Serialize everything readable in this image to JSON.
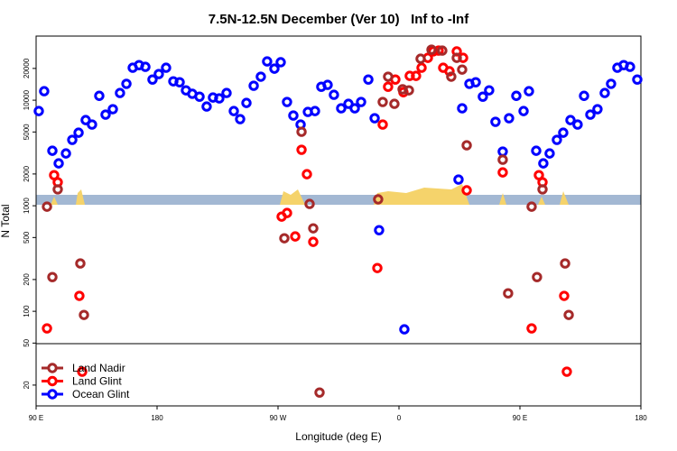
{
  "chart_data": {
    "type": "scatter",
    "title": "7.5N-12.5N December (Ver 10)   Inf to -Inf",
    "x_label": "Longitude (deg E)",
    "y_label": "N Total",
    "log_y": true,
    "xlim": [
      90,
      540
    ],
    "xticks": [
      {
        "value": 90,
        "label": "90 E"
      },
      180,
      {
        "value": 270,
        "label": "90 W"
      },
      {
        "value": 360,
        "label": "0"
      },
      {
        "value": 450,
        "label": "90 E"
      },
      {
        "value": 540,
        "label": "180"
      }
    ],
    "ylim": [
      12.7,
      40500
    ],
    "yticks": [
      20,
      50,
      100,
      200,
      500,
      1000,
      2000,
      5000,
      10000,
      20000
    ],
    "legend": "bottom-left",
    "series": [
      {
        "name": "Land Nadir",
        "color": "#a52a2a",
        "x": [
          98.1,
          102.1,
          106.1,
          122.9,
          125.6,
          274.7,
          287.5,
          293.5,
          296.2,
          300.9,
          344.5,
          347.9,
          351.9,
          356.6,
          362.7,
          367.4,
          376.1,
          384.2,
          392.2,
          398.9,
          403.0,
          407.0,
          410.4,
          437.2,
          441.2,
          458.7,
          462.7,
          466.8,
          483.6,
          486.3
        ],
        "values": [
          980,
          211,
          1430,
          284,
          92.4,
          492,
          5020,
          1040,
          611,
          17,
          1150,
          9620,
          16700,
          9240,
          12700,
          12400,
          24700,
          30100,
          29500,
          16700,
          25200,
          19500,
          3740,
          2730,
          148,
          980,
          211,
          1430,
          284,
          92.4
        ]
      },
      {
        "name": "Land Glint",
        "color": "#ff0000",
        "x": [
          98.1,
          103.4,
          106.1,
          122.2,
          124.3,
          272.7,
          276.7,
          282.8,
          287.5,
          291.5,
          296.2,
          343.9,
          347.9,
          351.9,
          357.3,
          363.3,
          368.0,
          372.7,
          376.8,
          381.5,
          385.5,
          389.5,
          392.9,
          397.6,
          403.0,
          407.7,
          410.4,
          437.2,
          458.7,
          464.1,
          466.8,
          482.9,
          484.9
        ],
        "values": [
          68.9,
          1950,
          1670,
          140,
          26.8,
          789,
          854,
          512,
          3390,
          1990,
          455,
          257,
          5880,
          13400,
          15700,
          11900,
          17000,
          17000,
          20300,
          25200,
          29000,
          29500,
          20300,
          18800,
          29000,
          25200,
          1400,
          2070,
          68.9,
          1950,
          1670,
          140,
          26.8
        ]
      },
      {
        "name": "Ocean Glint",
        "color": "#0000ff",
        "x": [
          92.0,
          96.0,
          102.1,
          106.8,
          112.2,
          116.9,
          121.6,
          126.9,
          131.6,
          137.0,
          141.7,
          147.1,
          152.4,
          157.2,
          161.9,
          166.6,
          171.3,
          176.6,
          181.3,
          186.7,
          192.1,
          196.8,
          201.5,
          206.2,
          211.6,
          216.9,
          221.6,
          226.3,
          231.7,
          237.1,
          241.8,
          246.5,
          251.9,
          257.2,
          261.9,
          267.3,
          272.0,
          276.7,
          281.4,
          286.8,
          292.2,
          297.5,
          302.2,
          306.9,
          311.6,
          317.0,
          322.4,
          327.1,
          331.8,
          337.2,
          341.9,
          345.2,
          364.0,
          404.3,
          407.0,
          412.4,
          417.1,
          422.4,
          427.1,
          431.8,
          437.2,
          441.9,
          447.3,
          452.7,
          456.7,
          462.1,
          467.4,
          472.1,
          477.5,
          482.2,
          487.6,
          492.9,
          497.7,
          502.4,
          507.7,
          513.1,
          517.8,
          522.5,
          527.2,
          531.9,
          537.3
        ],
        "values": [
          7890,
          12170,
          3320,
          2520,
          3130,
          4210,
          4920,
          6480,
          5880,
          11000,
          7300,
          8220,
          11700,
          14300,
          20300,
          21500,
          20700,
          15700,
          17700,
          20300,
          15100,
          14800,
          12400,
          11500,
          10800,
          8710,
          10600,
          10400,
          11700,
          7890,
          6620,
          9420,
          13700,
          16700,
          23300,
          19900,
          22900,
          9620,
          7160,
          5880,
          7740,
          7890,
          13400,
          13970,
          11250,
          8380,
          9240,
          8380,
          9620,
          15700,
          6750,
          587,
          67.5,
          1770,
          8380,
          14300,
          14800,
          10800,
          12400,
          6240,
          3260,
          6750,
          11000,
          7890,
          12170,
          3320,
          2520,
          3130,
          4210,
          4920,
          6480,
          5880,
          11000,
          7300,
          8220,
          11700,
          14300,
          20300,
          21500,
          20700,
          15700
        ]
      }
    ]
  }
}
